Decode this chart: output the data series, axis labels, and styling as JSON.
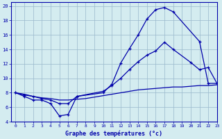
{
  "xlabel": "Graphe des températures (°c)",
  "xlim": [
    -0.5,
    23
  ],
  "ylim": [
    4,
    20.5
  ],
  "yticks": [
    4,
    6,
    8,
    10,
    12,
    14,
    16,
    18,
    20
  ],
  "xticks": [
    0,
    1,
    2,
    3,
    4,
    5,
    6,
    7,
    8,
    9,
    10,
    11,
    12,
    13,
    14,
    15,
    16,
    17,
    18,
    19,
    20,
    21,
    22,
    23
  ],
  "bg_color": "#d4ecf0",
  "grid_color": "#99b8cc",
  "line_color": "#0000aa",
  "curve1_x": [
    0,
    1,
    2,
    3,
    4,
    5,
    6,
    7,
    10,
    11,
    12,
    13,
    14,
    15,
    16,
    17,
    18,
    21,
    22,
    23
  ],
  "curve1_y": [
    8,
    7.5,
    7,
    7,
    6.5,
    4.8,
    5.0,
    7.5,
    8.0,
    9.2,
    12.1,
    14.1,
    16.0,
    18.2,
    19.5,
    19.8,
    19.2,
    15.1,
    9.3,
    9.3
  ],
  "curve2_x": [
    0,
    1,
    2,
    3,
    4,
    5,
    6,
    7,
    10,
    11,
    12,
    13,
    14,
    15,
    16,
    17,
    18,
    20,
    21,
    22,
    23
  ],
  "curve2_y": [
    8,
    7.7,
    7.5,
    7.2,
    7.0,
    6.5,
    6.5,
    7.5,
    8.2,
    9.0,
    10.0,
    11.2,
    12.3,
    13.2,
    13.8,
    15.0,
    14.0,
    12.2,
    11.2,
    11.5,
    9.3
  ],
  "curve3_x": [
    0,
    1,
    2,
    3,
    4,
    5,
    6,
    7,
    8,
    9,
    10,
    11,
    12,
    13,
    14,
    15,
    16,
    17,
    18,
    19,
    20,
    21,
    22,
    23
  ],
  "curve3_y": [
    8.0,
    7.8,
    7.5,
    7.3,
    7.2,
    7.0,
    7.0,
    7.1,
    7.2,
    7.4,
    7.6,
    7.8,
    8.0,
    8.2,
    8.4,
    8.5,
    8.6,
    8.7,
    8.8,
    8.8,
    8.9,
    9.0,
    9.0,
    9.1
  ]
}
